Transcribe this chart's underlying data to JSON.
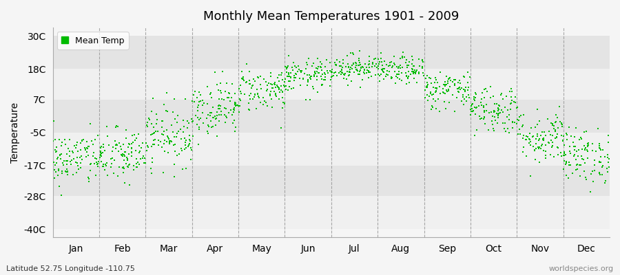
{
  "title": "Monthly Mean Temperatures 1901 - 2009",
  "ylabel": "Temperature",
  "subtitle_left": "Latitude 52.75 Longitude -110.75",
  "subtitle_right": "worldspecies.org",
  "legend_label": "Mean Temp",
  "dot_color": "#00bb00",
  "dot_size": 4,
  "background_color": "#f5f5f5",
  "band_colors": [
    "#f0f0f0",
    "#e4e4e4"
  ],
  "yticks": [
    -40,
    -28,
    -17,
    -5,
    7,
    18,
    30
  ],
  "ytick_labels": [
    "-40C",
    "-28C",
    "-17C",
    "-5C",
    "7C",
    "18C",
    "30C"
  ],
  "ylim": [
    -43,
    33
  ],
  "months": [
    "Jan",
    "Feb",
    "Mar",
    "Apr",
    "May",
    "Jun",
    "Jul",
    "Aug",
    "Sep",
    "Oct",
    "Nov",
    "Dec"
  ],
  "month_means": [
    -14.5,
    -13.5,
    -6.0,
    4.0,
    10.5,
    15.5,
    18.5,
    17.5,
    10.5,
    3.5,
    -6.5,
    -13.5
  ],
  "month_stds": [
    5.0,
    5.0,
    5.5,
    5.0,
    4.0,
    3.0,
    2.5,
    2.5,
    3.5,
    4.5,
    5.0,
    5.0
  ],
  "n_years": 109,
  "seed": 42,
  "vline_color": "#888888",
  "vline_alpha": 0.7
}
